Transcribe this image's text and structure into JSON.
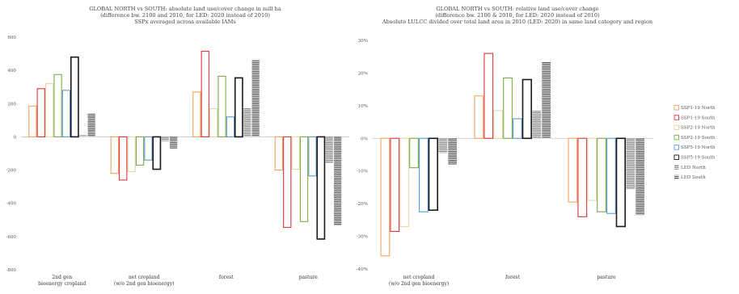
{
  "chart_data": [
    {
      "type": "bar",
      "title": "GLOBAL NORTH vs SOUTH: absolute land use/cover change in mill ha",
      "subtitle": [
        "(difference bw. 2100 and 2010, for LED: 2020 instead of 2010)",
        "SSPx averaged across available IAMs"
      ],
      "ylim": [
        -800,
        600
      ],
      "yticks": [
        "-800",
        "-600",
        "-400",
        "-200",
        "0",
        "200",
        "400",
        "600"
      ],
      "ytick_values": [
        -800,
        -600,
        -400,
        -200,
        0,
        200,
        400,
        600
      ],
      "categories": [
        [
          "2nd gen",
          "bioenergy cropland"
        ],
        [
          "net cropland",
          "(w/o 2nd gen bioenergy)"
        ],
        [
          "forest"
        ],
        [
          "pasture"
        ]
      ],
      "grid": false,
      "series": [
        {
          "name": "SSP1-19 North",
          "values": [
            185,
            -220,
            270,
            -200
          ]
        },
        {
          "name": "SSP1-19 South",
          "values": [
            290,
            -260,
            515,
            -545
          ]
        },
        {
          "name": "SSP2-19 North",
          "values": [
            320,
            -210,
            170,
            -195
          ]
        },
        {
          "name": "SSP2-19 South",
          "values": [
            375,
            -170,
            365,
            -510
          ]
        },
        {
          "name": "SSP5-19 North",
          "values": [
            280,
            -140,
            120,
            -235
          ]
        },
        {
          "name": "SSP5-19 South",
          "values": [
            480,
            -195,
            355,
            -615
          ]
        },
        {
          "name": "LED North",
          "values": [
            10,
            -25,
            175,
            -160
          ]
        },
        {
          "name": "LED South",
          "values": [
            140,
            -70,
            465,
            -535
          ]
        }
      ]
    },
    {
      "type": "bar",
      "title": "GLOBAL NORTH vs SOUTH: relative land use/cover change",
      "subtitle": [
        "(difference bw. 2100 & 2010, for LED: 2020 instead of 2010)",
        "Absolute LULCC divided over total land area in 2010 (LED: 2020) in same land category and region"
      ],
      "ylim": [
        -40,
        30
      ],
      "yticks": [
        "-40%",
        "-30%",
        "-20%",
        "-10%",
        "0%",
        "10%",
        "20%",
        "30%"
      ],
      "ytick_values": [
        -40,
        -30,
        -20,
        -10,
        0,
        10,
        20,
        30
      ],
      "categories": [
        [
          "net cropland",
          "(w/o 2nd gen bioenergy)"
        ],
        [
          "forest"
        ],
        [
          "pasture"
        ]
      ],
      "grid": false,
      "legend_position": "right",
      "series": [
        {
          "name": "SSP1-19 North",
          "values": [
            -36,
            13,
            -19.5
          ]
        },
        {
          "name": "SSP1-19 South",
          "values": [
            -28.5,
            26,
            -24
          ]
        },
        {
          "name": "SSP2-19 North",
          "values": [
            -27,
            8.5,
            -19
          ]
        },
        {
          "name": "SSP2-19 South",
          "values": [
            -9,
            18.5,
            -22.5
          ]
        },
        {
          "name": "SSP5-19 North",
          "values": [
            -22.5,
            6,
            -23
          ]
        },
        {
          "name": "SSP5-19 South",
          "values": [
            -22,
            18,
            -27
          ]
        },
        {
          "name": "LED North",
          "values": [
            -4.5,
            8.5,
            -15.5
          ]
        },
        {
          "name": "LED South",
          "values": [
            -8,
            23.5,
            -23.5
          ]
        }
      ]
    }
  ],
  "colors": {
    "SSP1-19 North": "#f4a460",
    "SSP1-19 South": "#d9363e",
    "SSP2-19 North": "#e2d9a6",
    "SSP2-19 South": "#7aab47",
    "SSP5-19 North": "#5b9bd5",
    "SSP5-19 South": "#1a1a1a",
    "LED North": "#777777",
    "LED South": "#555555"
  }
}
